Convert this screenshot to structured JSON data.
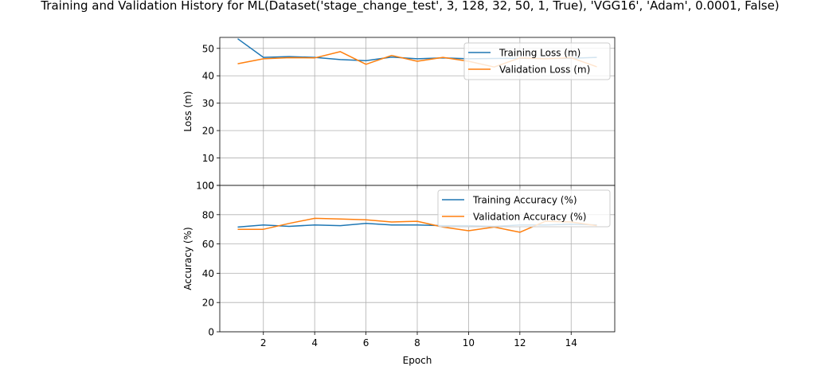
{
  "chart_data": [
    {
      "type": "line",
      "title": "Training and Validation History for ML(Dataset('stage_change_test', 3, 128, 32, 50, 1, True), 'VGG16', 'Adam', 0.0001, False)",
      "xlabel": "",
      "ylabel": "Loss (m)",
      "x": [
        1,
        2,
        3,
        4,
        5,
        6,
        7,
        8,
        9,
        10,
        11,
        12,
        13,
        14,
        15
      ],
      "xlim": [
        0.3,
        15.7
      ],
      "ylim": [
        0,
        54
      ],
      "xticks": [
        2,
        4,
        6,
        8,
        10,
        12,
        14
      ],
      "yticks": [
        0,
        10,
        20,
        30,
        40,
        50
      ],
      "grid": true,
      "legend_position": "top-right",
      "series": [
        {
          "name": "Training Loss (m)",
          "color": "#1f77b4",
          "values": [
            53.5,
            46.7,
            47.0,
            46.7,
            45.9,
            45.5,
            46.8,
            46.2,
            46.5,
            46.2,
            46.3,
            46.4,
            46.3,
            46.4,
            46.7
          ]
        },
        {
          "name": "Validation Loss (m)",
          "color": "#ff7f0e",
          "values": [
            44.4,
            46.2,
            46.6,
            46.5,
            48.8,
            44.2,
            47.4,
            45.3,
            46.7,
            45.3,
            43.2,
            46.5,
            46.2,
            46.6,
            43.3
          ]
        }
      ]
    },
    {
      "type": "line",
      "xlabel": "Epoch",
      "ylabel": "Accuracy (%)",
      "x": [
        1,
        2,
        3,
        4,
        5,
        6,
        7,
        8,
        9,
        10,
        11,
        12,
        13,
        14,
        15
      ],
      "xlim": [
        0.3,
        15.7
      ],
      "ylim": [
        0,
        100
      ],
      "xticks": [
        2,
        4,
        6,
        8,
        10,
        12,
        14
      ],
      "yticks": [
        0,
        20,
        40,
        60,
        80,
        100
      ],
      "grid": true,
      "legend_position": "top-right",
      "series": [
        {
          "name": "Training Accuracy (%)",
          "color": "#1f77b4",
          "values": [
            71.5,
            73.0,
            72.0,
            73.0,
            72.5,
            74.0,
            73.0,
            73.0,
            72.5,
            72.5,
            72.0,
            73.0,
            73.0,
            73.5,
            73.0
          ]
        },
        {
          "name": "Validation Accuracy (%)",
          "color": "#ff7f0e",
          "values": [
            70.0,
            70.0,
            74.0,
            77.5,
            77.0,
            76.5,
            75.0,
            75.5,
            71.5,
            69.0,
            71.5,
            68.0,
            75.5,
            75.0,
            72.5
          ]
        }
      ]
    }
  ]
}
